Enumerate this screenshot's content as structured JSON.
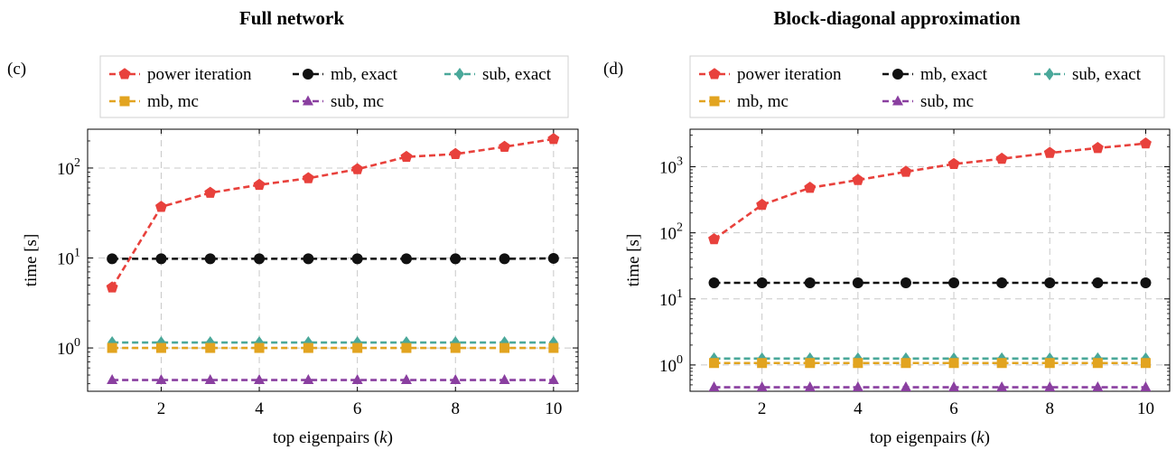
{
  "chart_data": [
    {
      "type": "line",
      "panel_label": "(c)",
      "title": "Full network",
      "xlabel": "top eigenpairs",
      "xlabel_var": "k",
      "ylabel": "time [s]",
      "yscale": "log",
      "xlim": [
        0.5,
        10.5
      ],
      "ylim": [
        0.33,
        270
      ],
      "grid": true,
      "legend_position": "top",
      "x": [
        1,
        2,
        3,
        4,
        5,
        6,
        7,
        8,
        9,
        10
      ],
      "x_ticks": [
        2,
        4,
        6,
        8,
        10
      ],
      "y_ticks": [
        {
          "value": 1,
          "base": "10",
          "exp": "0"
        },
        {
          "value": 10,
          "base": "10",
          "exp": "1"
        },
        {
          "value": 100,
          "base": "10",
          "exp": "2"
        }
      ],
      "series": [
        {
          "name": "power iteration",
          "color": "#e8413c",
          "marker": "pentagon",
          "values": [
            4.7,
            37,
            53,
            65,
            77,
            97,
            133,
            143,
            172,
            210
          ]
        },
        {
          "name": "mb, exact",
          "color": "#111111",
          "marker": "circle",
          "values": [
            9.8,
            9.8,
            9.8,
            9.8,
            9.8,
            9.8,
            9.8,
            9.8,
            9.8,
            9.9
          ]
        },
        {
          "name": "sub, exact",
          "color": "#4aa89a",
          "marker": "diamond",
          "values": [
            1.15,
            1.15,
            1.15,
            1.15,
            1.15,
            1.15,
            1.15,
            1.15,
            1.15,
            1.15
          ]
        },
        {
          "name": "mb, mc",
          "color": "#e2a420",
          "marker": "square",
          "values": [
            1.0,
            1.0,
            1.0,
            1.0,
            1.0,
            1.0,
            1.0,
            1.0,
            1.0,
            1.0
          ]
        },
        {
          "name": "sub, mc",
          "color": "#8a3fa0",
          "marker": "triangle",
          "values": [
            0.44,
            0.44,
            0.44,
            0.44,
            0.44,
            0.44,
            0.44,
            0.44,
            0.44,
            0.44
          ]
        }
      ]
    },
    {
      "type": "line",
      "panel_label": "(d)",
      "title": "Block-diagonal approximation",
      "xlabel": "top eigenpairs",
      "xlabel_var": "k",
      "ylabel": "time [s]",
      "yscale": "log",
      "xlim": [
        0.5,
        10.5
      ],
      "ylim": [
        0.4,
        3700
      ],
      "grid": true,
      "legend_position": "top",
      "x": [
        1,
        2,
        3,
        4,
        5,
        6,
        7,
        8,
        9,
        10
      ],
      "x_ticks": [
        2,
        4,
        6,
        8,
        10
      ],
      "y_ticks": [
        {
          "value": 1,
          "base": "10",
          "exp": "0"
        },
        {
          "value": 10,
          "base": "10",
          "exp": "1"
        },
        {
          "value": 100,
          "base": "10",
          "exp": "2"
        },
        {
          "value": 1000,
          "base": "10",
          "exp": "3"
        }
      ],
      "series": [
        {
          "name": "power iteration",
          "color": "#e8413c",
          "marker": "pentagon",
          "values": [
            80,
            265,
            480,
            630,
            840,
            1100,
            1320,
            1620,
            1920,
            2250
          ]
        },
        {
          "name": "mb, exact",
          "color": "#111111",
          "marker": "circle",
          "values": [
            17.5,
            17.5,
            17.5,
            17.5,
            17.5,
            17.5,
            17.5,
            17.5,
            17.5,
            17.5
          ]
        },
        {
          "name": "sub, exact",
          "color": "#4aa89a",
          "marker": "diamond",
          "values": [
            1.25,
            1.25,
            1.25,
            1.25,
            1.25,
            1.25,
            1.25,
            1.25,
            1.25,
            1.25
          ]
        },
        {
          "name": "mb, mc",
          "color": "#e2a420",
          "marker": "square",
          "values": [
            1.07,
            1.07,
            1.07,
            1.07,
            1.07,
            1.07,
            1.07,
            1.07,
            1.07,
            1.07
          ]
        },
        {
          "name": "sub, mc",
          "color": "#8a3fa0",
          "marker": "triangle",
          "values": [
            0.46,
            0.46,
            0.46,
            0.46,
            0.46,
            0.46,
            0.46,
            0.46,
            0.46,
            0.46
          ]
        }
      ]
    }
  ]
}
